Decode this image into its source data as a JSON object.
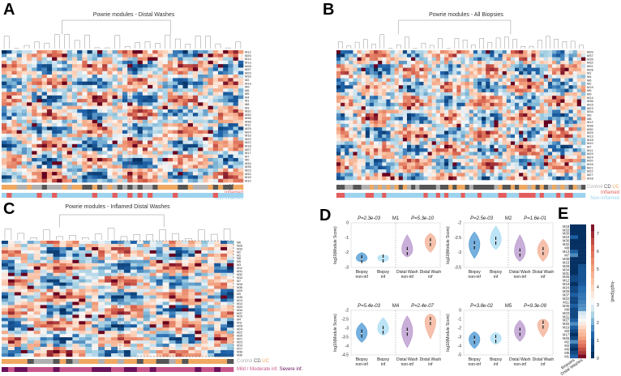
{
  "panels": {
    "A": "A",
    "B": "B",
    "C": "C",
    "D": "D",
    "E": "E"
  },
  "legend": {
    "control": "Control",
    "cd": "CD",
    "uc": "UC",
    "inflamed": "Inflamed",
    "noninflamed": "Non-inflamed",
    "mild": "Mild / Moderate inf.",
    "severe": "Severe inf."
  },
  "colors": {
    "control": "#b0b0b0",
    "cd": "#555555",
    "uc": "#f0a860",
    "inflamed": "#e35d5d",
    "noninflamed": "#9dd3ee",
    "mild": "#c8558a",
    "severe": "#6a0f5a",
    "bx_noninf": "#3b8fd0",
    "bx_inf": "#9fd8f2",
    "dw_noninf": "#b08cc8",
    "dw_inf": "#f2a789"
  },
  "chart_data": [
    {
      "type": "heatmap",
      "id": "A",
      "title": "Powrie modules - Distal Washes",
      "rows": [
        "M12",
        "M26",
        "M14",
        "M13",
        "M28",
        "M37",
        "M29",
        "M33",
        "M2",
        "M19",
        "M9",
        "M6",
        "M5",
        "M4",
        "M1",
        "M8",
        "M3",
        "M31",
        "M30",
        "M36",
        "M38",
        "M11",
        "M25",
        "M24",
        "M16",
        "M20",
        "M22",
        "M18",
        "M27",
        "M17",
        "M7",
        "M0",
        "M34",
        "M35",
        "M23",
        "M32",
        "M15",
        "M10"
      ],
      "cols": 48,
      "seed": 11
    },
    {
      "type": "heatmap",
      "id": "B",
      "title": "Powrie modules - All Biopsies",
      "rows": [
        "M26",
        "M37",
        "M35",
        "M32",
        "M31",
        "M28",
        "M1",
        "M4",
        "M6",
        "M2",
        "M19",
        "M5",
        "M9",
        "M14",
        "M36",
        "M15",
        "M23",
        "M34",
        "M3",
        "M8",
        "M12",
        "M38",
        "M30",
        "M25",
        "M13",
        "M18",
        "M10",
        "M7",
        "M11",
        "M29",
        "M24",
        "M20",
        "M16",
        "M21",
        "M22",
        "M27",
        "M18"
      ],
      "cols": 60,
      "seed": 23
    },
    {
      "type": "heatmap",
      "id": "C",
      "title": "Powrie modules - Inflamed Distal Washes",
      "rows": [
        "M6",
        "M26",
        "M33",
        "M2",
        "M1",
        "M8",
        "M5",
        "M3",
        "M12",
        "M31",
        "M32",
        "M10",
        "M7",
        "M18",
        "M36",
        "M29",
        "M9",
        "M35",
        "M13",
        "M14",
        "M20",
        "M34",
        "M37",
        "M15",
        "M4",
        "M11",
        "M28",
        "M24",
        "M22",
        "M25",
        "M21",
        "M23",
        "M19",
        "M17",
        "M38",
        "M30"
      ],
      "cols": 36,
      "seed": 37
    },
    {
      "type": "violin",
      "id": "D",
      "ylabel": "log10(Module Score)",
      "groups": [
        "Biopsy non-inf",
        "Biopsy inf",
        "Distal Wash non-inf",
        "Distal Wash inf"
      ],
      "plots": [
        {
          "module": "M1",
          "p_left": "P=2.3e-03",
          "p_right": "P=5.3e-10",
          "ylim": [
            -3,
            0
          ],
          "ticks": [
            "0",
            "-1",
            "-2",
            "-3"
          ],
          "medians": [
            -2.45,
            -2.4,
            -1.9,
            -1.3
          ],
          "ranges": [
            [
              -2.6,
              -2.0
            ],
            [
              -2.6,
              -2.2
            ],
            [
              -2.3,
              -0.8
            ],
            [
              -2.0,
              -0.7
            ]
          ]
        },
        {
          "module": "M2",
          "p_left": "P=2.5e-03",
          "p_right": "P=1.6e-01",
          "ylim": [
            -3.5,
            -2
          ],
          "ticks": [
            "-2",
            "-2.5",
            "-3",
            "-3.5"
          ],
          "medians": [
            -2.75,
            -2.6,
            -3.0,
            -2.95
          ],
          "ranges": [
            [
              -3.2,
              -2.3
            ],
            [
              -2.9,
              -2.1
            ],
            [
              -3.3,
              -2.4
            ],
            [
              -3.3,
              -2.55
            ]
          ]
        },
        {
          "module": "M4",
          "p_left": "P=5.4e-03",
          "p_right": "P=2.4e-07",
          "ylim": [
            -4.5,
            -2
          ],
          "ticks": [
            "-2",
            "-2.5",
            "-3",
            "-3.5",
            "-4",
            "-4.5"
          ],
          "medians": [
            -3.3,
            -3.1,
            -3.2,
            -2.6
          ],
          "ranges": [
            [
              -3.8,
              -2.7
            ],
            [
              -3.4,
              -2.4
            ],
            [
              -4.1,
              -2.3
            ],
            [
              -3.6,
              -2.2
            ]
          ]
        },
        {
          "module": "M5",
          "p_left": "P=3.8e-02",
          "p_right": "P=9.3e-09",
          "ylim": [
            -5,
            0
          ],
          "ticks": [
            "0",
            "-1",
            "-2",
            "-3",
            "-4",
            "-5"
          ],
          "medians": [
            -3.3,
            -3.2,
            -2.4,
            -1.6
          ],
          "ranges": [
            [
              -4.3,
              -2.4
            ],
            [
              -3.8,
              -2.5
            ],
            [
              -3.5,
              -1.1
            ],
            [
              -3.0,
              -1.0
            ]
          ]
        }
      ]
    },
    {
      "type": "heatmap",
      "id": "E",
      "columns": [
        "Biopsies",
        "Distal Washes"
      ],
      "colorbar_label": "-log10(pval)",
      "colorbar_ticks": [
        "0",
        "1",
        "2",
        "3",
        "4",
        "5",
        "6",
        "7"
      ],
      "rows": [
        "M18",
        "M33",
        "M30",
        "M10",
        "M36",
        "M32",
        "M8",
        "M13",
        "M7",
        "M38",
        "M15",
        "M28",
        "M34",
        "M31",
        "M26",
        "M12",
        "M19",
        "M24",
        "M29",
        "M37",
        "M22",
        "M11",
        "M35",
        "M9",
        "M23",
        "M21",
        "M27",
        "M20",
        "M16",
        "M3",
        "M17",
        "M25",
        "M2",
        "M4",
        "M6",
        "M5",
        "M1"
      ],
      "values_biopsies": [
        0,
        0,
        0,
        1,
        0,
        0,
        0,
        1,
        1.5,
        0,
        0,
        0,
        0,
        0,
        0.5,
        0.5,
        0,
        0.5,
        0.5,
        1,
        0.5,
        0.5,
        1,
        0.5,
        0.5,
        0.5,
        1,
        1.5,
        1,
        0.5,
        0,
        0.5,
        1.5,
        0.5,
        0,
        0.5,
        1
      ],
      "values_washes": [
        0,
        0,
        0,
        0,
        0,
        0,
        0,
        0,
        0,
        0,
        0,
        0.7,
        0.8,
        0.8,
        0.8,
        0.8,
        0.9,
        1.2,
        1.2,
        1.3,
        1.3,
        1.4,
        1.5,
        1.6,
        2.6,
        2.8,
        3.0,
        3.3,
        3.7,
        4.2,
        4.4,
        4.8,
        5.4,
        5.8,
        6.3,
        6.6,
        7.2
      ]
    }
  ]
}
